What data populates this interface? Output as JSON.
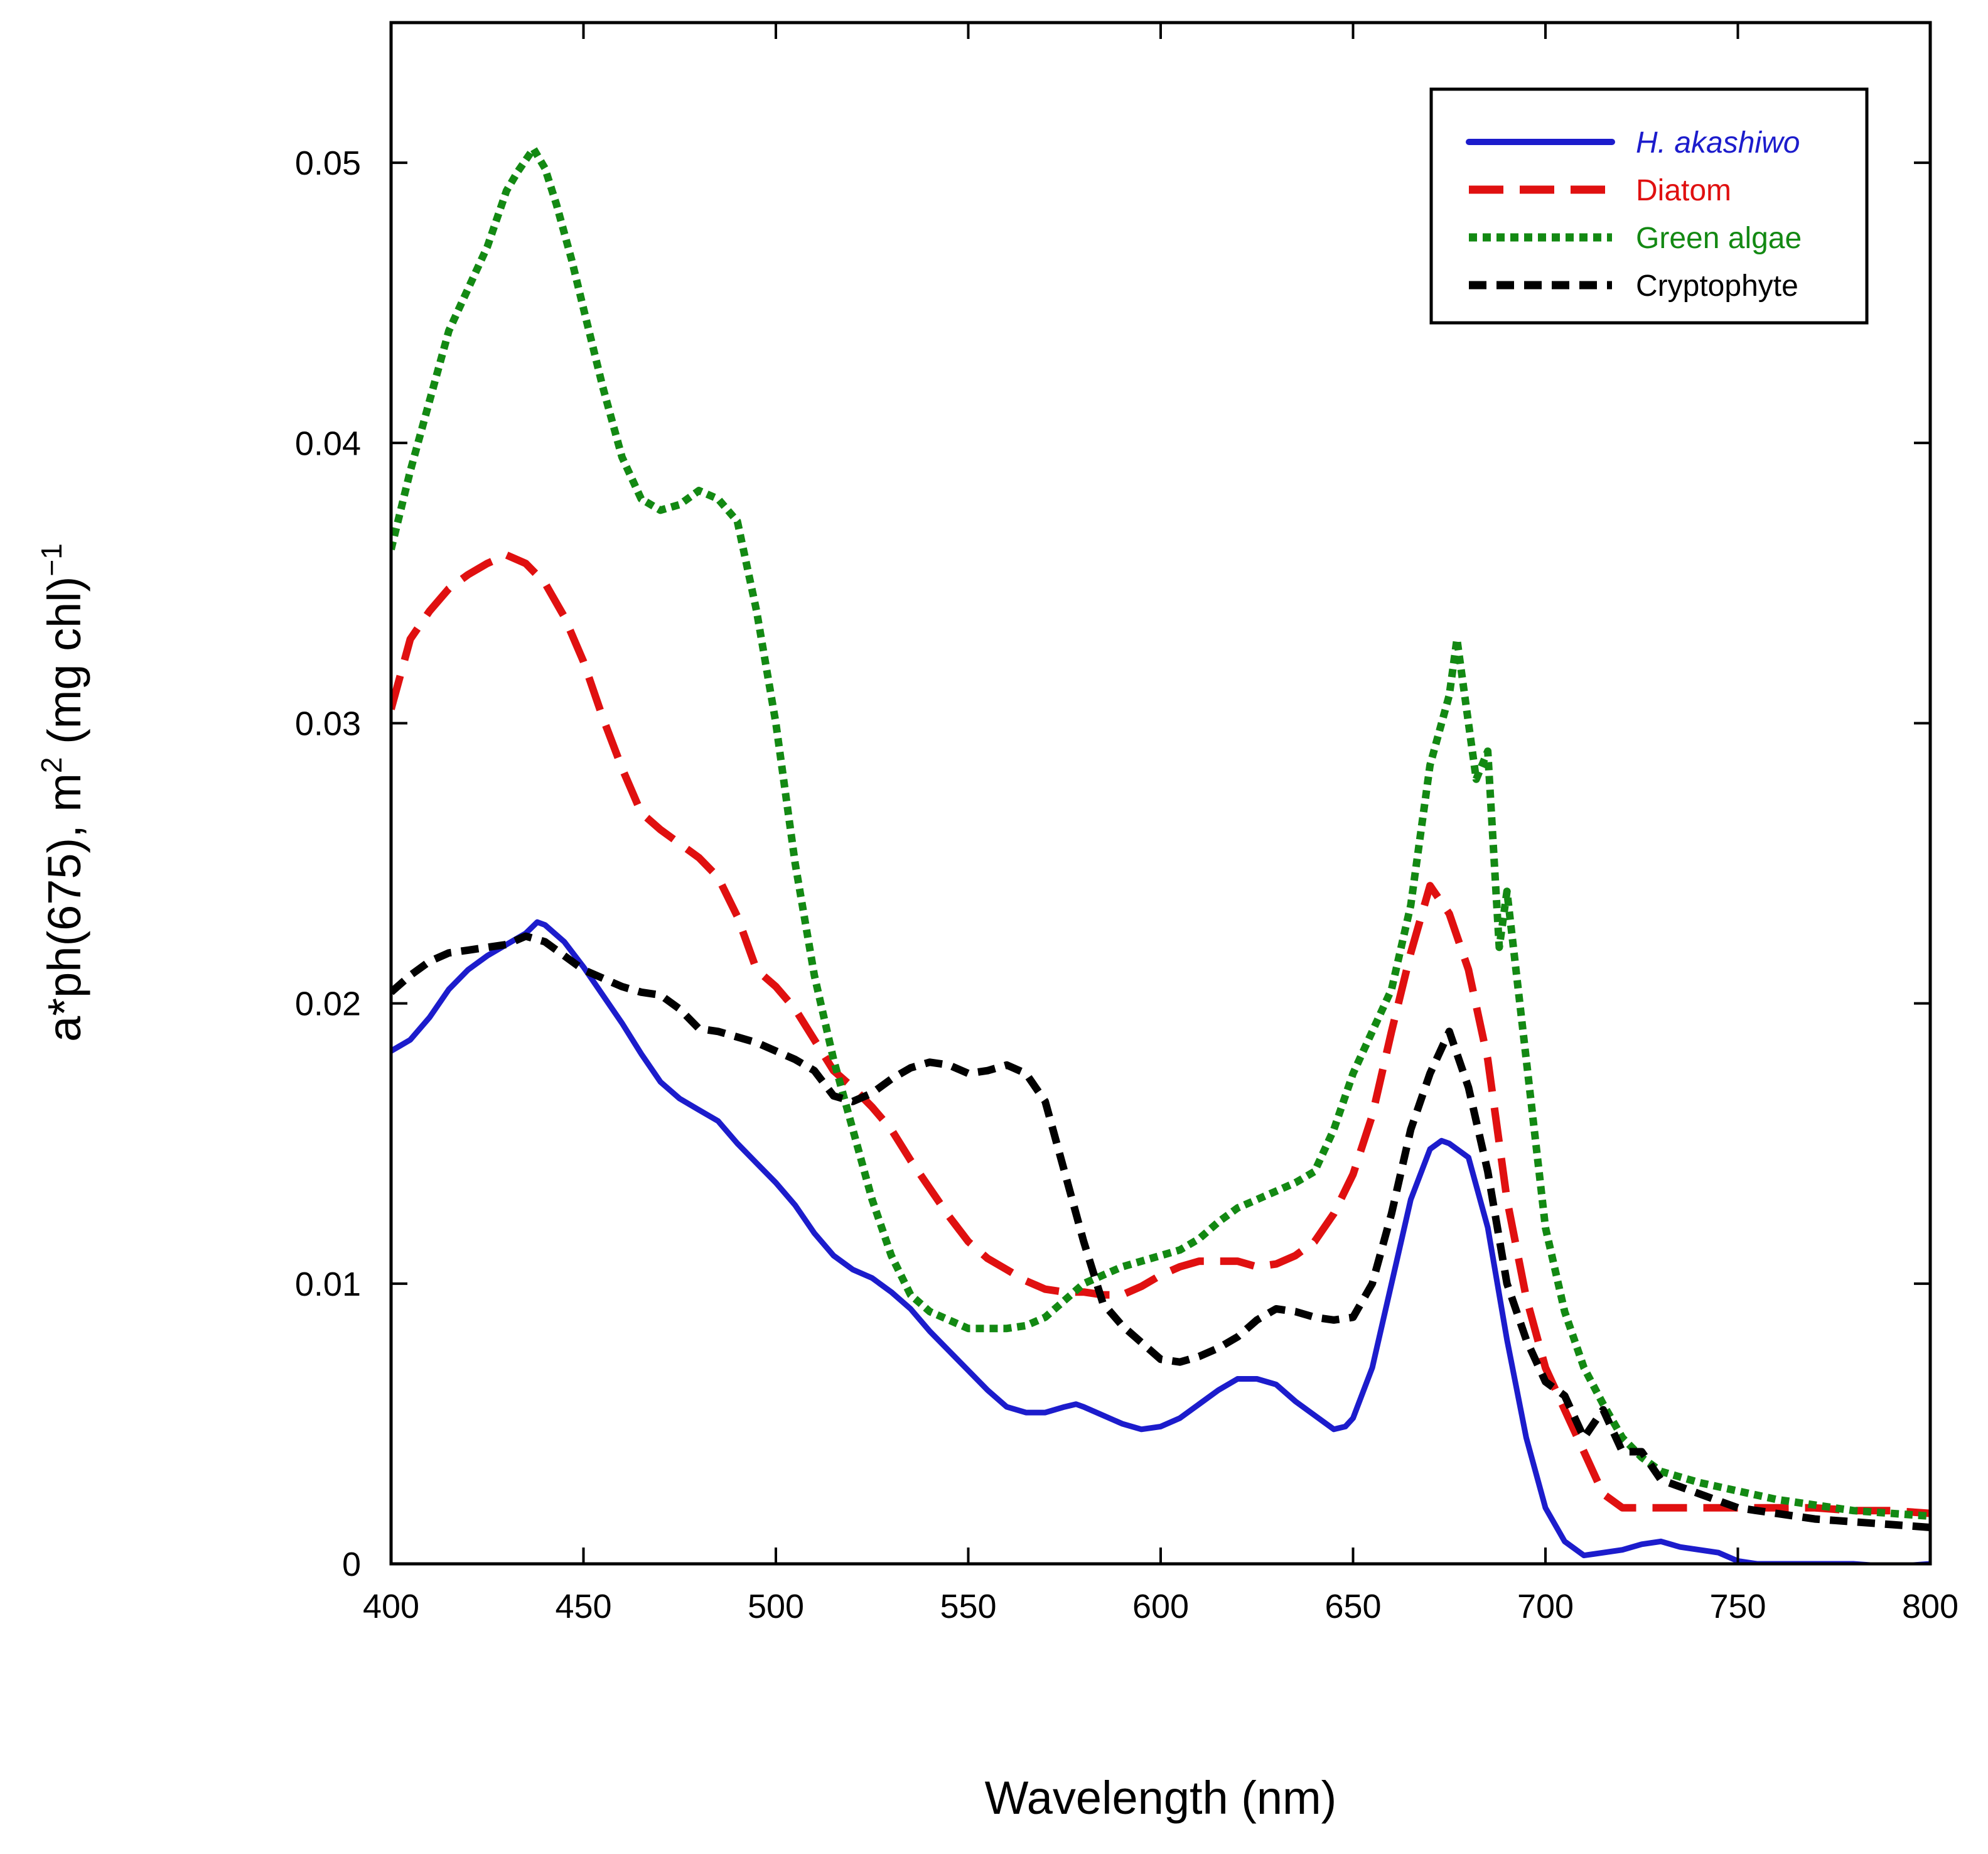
{
  "chart_data": {
    "type": "line",
    "title": "",
    "xlabel": "Wavelength (nm)",
    "ylabel": {
      "pre": "a*ph(675), m",
      "sup1": "2",
      "mid": " (mg chl)",
      "sup2": "−1"
    },
    "xlim": [
      400,
      800
    ],
    "ylim": [
      0,
      0.055
    ],
    "xticks": [
      400,
      450,
      500,
      550,
      600,
      650,
      700,
      750,
      800
    ],
    "xtick_labels": [
      "400",
      "450",
      "500",
      "550",
      "600",
      "650",
      "700",
      "750",
      "800"
    ],
    "yticks": [
      0,
      0.01,
      0.02,
      0.03,
      0.04,
      0.05
    ],
    "ytick_labels": [
      "0",
      "0.01",
      "0.02",
      "0.03",
      "0.04",
      "0.05"
    ],
    "grid": false,
    "legend_position": "top-right",
    "series": [
      {
        "name": "H. akashiwo",
        "color": "#1c1ccc",
        "style": "solid",
        "italic": true,
        "x": [
          400,
          405,
          410,
          415,
          420,
          425,
          430,
          435,
          438,
          440,
          445,
          450,
          455,
          460,
          465,
          470,
          475,
          480,
          485,
          490,
          495,
          500,
          505,
          510,
          515,
          520,
          525,
          530,
          535,
          540,
          545,
          550,
          555,
          560,
          565,
          570,
          575,
          578,
          580,
          585,
          590,
          595,
          600,
          605,
          610,
          615,
          620,
          625,
          630,
          635,
          640,
          645,
          648,
          650,
          655,
          660,
          665,
          670,
          673,
          675,
          680,
          685,
          690,
          695,
          700,
          705,
          710,
          715,
          720,
          725,
          730,
          735,
          740,
          745,
          750,
          755,
          760,
          770,
          780,
          790,
          800
        ],
        "y": [
          0.0183,
          0.0187,
          0.0195,
          0.0205,
          0.0212,
          0.0217,
          0.0221,
          0.0225,
          0.0229,
          0.0228,
          0.0222,
          0.0213,
          0.0203,
          0.0193,
          0.0182,
          0.0172,
          0.0166,
          0.0162,
          0.0158,
          0.015,
          0.0143,
          0.0136,
          0.0128,
          0.0118,
          0.011,
          0.0105,
          0.0102,
          0.0097,
          0.0091,
          0.0083,
          0.0076,
          0.0069,
          0.0062,
          0.0056,
          0.0054,
          0.0054,
          0.0056,
          0.0057,
          0.0056,
          0.0053,
          0.005,
          0.0048,
          0.0049,
          0.0052,
          0.0057,
          0.0062,
          0.0066,
          0.0066,
          0.0064,
          0.0058,
          0.0053,
          0.0048,
          0.0049,
          0.0052,
          0.007,
          0.01,
          0.013,
          0.0148,
          0.0151,
          0.015,
          0.0145,
          0.012,
          0.008,
          0.0045,
          0.002,
          0.0008,
          0.0003,
          0.0004,
          0.0005,
          0.0007,
          0.0008,
          0.0006,
          0.0005,
          0.0004,
          0.0001,
          0.0,
          0.0,
          0.0,
          0.0,
          -0.0001,
          0.0
        ]
      },
      {
        "name": "Diatom",
        "color": "#e01010",
        "style": "longdash",
        "italic": false,
        "x": [
          400,
          405,
          410,
          415,
          420,
          425,
          430,
          435,
          440,
          445,
          450,
          455,
          460,
          465,
          470,
          475,
          480,
          485,
          490,
          495,
          500,
          505,
          510,
          515,
          520,
          525,
          530,
          535,
          540,
          545,
          550,
          555,
          560,
          565,
          570,
          575,
          580,
          585,
          590,
          595,
          600,
          605,
          610,
          615,
          620,
          625,
          630,
          635,
          640,
          645,
          650,
          655,
          660,
          665,
          670,
          675,
          680,
          685,
          690,
          695,
          700,
          705,
          710,
          715,
          720,
          730,
          740,
          750,
          760,
          770,
          780,
          790,
          800
        ],
        "y": [
          0.0305,
          0.033,
          0.034,
          0.0348,
          0.0353,
          0.0357,
          0.036,
          0.0357,
          0.035,
          0.0338,
          0.0322,
          0.0302,
          0.0284,
          0.0268,
          0.0262,
          0.0257,
          0.0252,
          0.0245,
          0.0231,
          0.0212,
          0.0206,
          0.0198,
          0.0187,
          0.0176,
          0.017,
          0.0163,
          0.0155,
          0.0144,
          0.0134,
          0.0124,
          0.0115,
          0.0109,
          0.0105,
          0.0101,
          0.0098,
          0.0097,
          0.0097,
          0.0096,
          0.0096,
          0.0099,
          0.0103,
          0.0106,
          0.0108,
          0.0108,
          0.0108,
          0.0106,
          0.0107,
          0.011,
          0.0115,
          0.0125,
          0.0139,
          0.016,
          0.019,
          0.0218,
          0.0242,
          0.0232,
          0.0212,
          0.018,
          0.013,
          0.0095,
          0.007,
          0.0055,
          0.004,
          0.0025,
          0.002,
          0.002,
          0.002,
          0.002,
          0.002,
          0.002,
          0.0019,
          0.0019,
          0.0018
        ]
      },
      {
        "name": "Green algae",
        "color": "#138913",
        "style": "dotted",
        "italic": false,
        "x": [
          400,
          405,
          410,
          415,
          420,
          425,
          430,
          433,
          437,
          440,
          443,
          447,
          450,
          455,
          460,
          465,
          470,
          475,
          480,
          485,
          490,
          495,
          500,
          505,
          510,
          515,
          520,
          525,
          530,
          535,
          540,
          545,
          550,
          555,
          560,
          565,
          570,
          575,
          580,
          585,
          590,
          595,
          600,
          605,
          610,
          615,
          620,
          625,
          630,
          635,
          640,
          645,
          650,
          655,
          660,
          665,
          670,
          675,
          677,
          680,
          682,
          685,
          688,
          690,
          695,
          700,
          705,
          710,
          715,
          720,
          725,
          730,
          740,
          750,
          760,
          770,
          780,
          790,
          800
        ],
        "y": [
          0.0362,
          0.039,
          0.0415,
          0.044,
          0.0455,
          0.047,
          0.049,
          0.0497,
          0.0505,
          0.0498,
          0.0485,
          0.0465,
          0.0448,
          0.042,
          0.0395,
          0.038,
          0.0376,
          0.0378,
          0.0383,
          0.038,
          0.0372,
          0.034,
          0.03,
          0.025,
          0.021,
          0.018,
          0.0155,
          0.013,
          0.011,
          0.0096,
          0.009,
          0.0087,
          0.0084,
          0.0084,
          0.0084,
          0.0085,
          0.0088,
          0.0094,
          0.01,
          0.0103,
          0.0106,
          0.0108,
          0.011,
          0.0112,
          0.0116,
          0.0122,
          0.0127,
          0.013,
          0.0133,
          0.0136,
          0.014,
          0.0155,
          0.0175,
          0.019,
          0.0205,
          0.0235,
          0.0285,
          0.031,
          0.033,
          0.03,
          0.028,
          0.029,
          0.022,
          0.024,
          0.018,
          0.012,
          0.009,
          0.007,
          0.0057,
          0.0045,
          0.0038,
          0.0033,
          0.0029,
          0.0026,
          0.0023,
          0.0021,
          0.0019,
          0.0018,
          0.0017
        ]
      },
      {
        "name": "Cryptophyte",
        "color": "#000000",
        "style": "dashed",
        "italic": false,
        "x": [
          400,
          405,
          410,
          415,
          420,
          425,
          430,
          435,
          440,
          445,
          450,
          455,
          460,
          465,
          470,
          475,
          480,
          485,
          490,
          495,
          500,
          505,
          510,
          515,
          520,
          525,
          530,
          535,
          540,
          545,
          550,
          555,
          560,
          565,
          570,
          575,
          580,
          585,
          590,
          595,
          600,
          605,
          610,
          615,
          620,
          625,
          630,
          635,
          640,
          645,
          650,
          655,
          660,
          665,
          670,
          675,
          680,
          685,
          690,
          695,
          700,
          705,
          710,
          715,
          720,
          725,
          730,
          740,
          750,
          760,
          770,
          780,
          790,
          800
        ],
        "y": [
          0.0204,
          0.021,
          0.0215,
          0.0218,
          0.0219,
          0.022,
          0.0221,
          0.0224,
          0.0222,
          0.0217,
          0.0212,
          0.0209,
          0.0206,
          0.0204,
          0.0203,
          0.0198,
          0.0191,
          0.019,
          0.0188,
          0.0186,
          0.0183,
          0.018,
          0.0176,
          0.0167,
          0.0165,
          0.0168,
          0.0173,
          0.0177,
          0.0179,
          0.0178,
          0.0175,
          0.0176,
          0.0178,
          0.0175,
          0.0165,
          0.014,
          0.0115,
          0.0093,
          0.0085,
          0.0079,
          0.0073,
          0.0072,
          0.0074,
          0.0077,
          0.0081,
          0.0087,
          0.0091,
          0.009,
          0.0088,
          0.0087,
          0.0088,
          0.01,
          0.0125,
          0.0155,
          0.0175,
          0.019,
          0.017,
          0.014,
          0.01,
          0.008,
          0.0065,
          0.006,
          0.0045,
          0.0055,
          0.004,
          0.004,
          0.003,
          0.0025,
          0.002,
          0.0018,
          0.0016,
          0.0015,
          0.0014,
          0.0013
        ]
      }
    ]
  }
}
